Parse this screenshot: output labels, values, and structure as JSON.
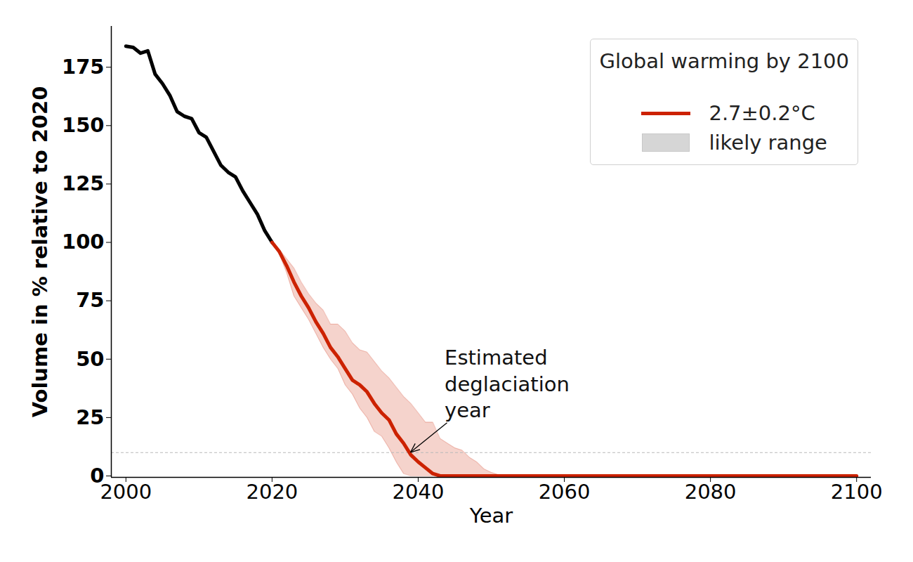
{
  "chart_data": {
    "type": "line",
    "xlabel": "Year",
    "ylabel": "Volume in % relative to 2020",
    "xlim": [
      1998,
      2102
    ],
    "ylim": [
      -0.6,
      192.5
    ],
    "xticks": [
      2000,
      2020,
      2040,
      2060,
      2080,
      2100
    ],
    "yticks": [
      0,
      25,
      50,
      75,
      100,
      125,
      150,
      175
    ],
    "legend": "upper right",
    "legend_title": "Global warming by 2100",
    "reference_line": 10,
    "annotation": {
      "text": "Estimated deglaciation year",
      "x": 2039,
      "y": 10
    },
    "series": [
      {
        "color": "#000000",
        "x": [
          2000,
          2001,
          2002,
          2003,
          2004,
          2005,
          2006,
          2007,
          2008,
          2009,
          2010,
          2011,
          2012,
          2013,
          2014,
          2015,
          2016,
          2017,
          2018,
          2019,
          2020
        ],
        "values": [
          184,
          183.5,
          181,
          182,
          172,
          168,
          163,
          156,
          154,
          153,
          147,
          145,
          139,
          133,
          130,
          128,
          122,
          117,
          112,
          105,
          100
        ]
      },
      {
        "name": "2.7±0.2°C",
        "color": "#cc2200",
        "x": [
          2020,
          2021,
          2022,
          2023,
          2024,
          2025,
          2026,
          2027,
          2028,
          2029,
          2030,
          2031,
          2032,
          2033,
          2034,
          2035,
          2036,
          2037,
          2038,
          2039,
          2040,
          2041,
          2042,
          2043,
          2044,
          2045,
          2046,
          2047,
          2048,
          2049,
          2050,
          2051,
          2052,
          2053,
          2054,
          2055,
          2056,
          2057,
          2058,
          2059,
          2060,
          2061,
          2062,
          2063,
          2064,
          2065,
          2066,
          2067,
          2068,
          2069,
          2070,
          2071,
          2072,
          2073,
          2074,
          2075,
          2076,
          2077,
          2078,
          2079,
          2080,
          2081,
          2082,
          2083,
          2084,
          2085,
          2086,
          2087,
          2088,
          2089,
          2090,
          2091,
          2092,
          2093,
          2094,
          2095,
          2096,
          2097,
          2098,
          2099,
          2100
        ],
        "values": [
          100,
          96,
          90,
          83,
          77,
          72,
          66,
          61,
          55,
          51,
          46,
          41,
          39,
          36,
          31,
          27,
          24,
          18,
          14,
          9,
          6,
          3.5,
          1,
          0,
          0,
          0,
          0,
          0,
          0,
          0,
          0,
          0,
          0,
          0,
          0,
          0,
          0,
          0,
          0,
          0,
          0,
          0,
          0,
          0,
          0,
          0,
          0,
          0,
          0,
          0,
          0,
          0,
          0,
          0,
          0,
          0,
          0,
          0,
          0,
          0,
          0,
          0,
          0,
          0,
          0,
          0,
          0,
          0,
          0,
          0,
          0,
          0,
          0,
          0,
          0,
          0,
          0,
          0,
          0,
          0,
          0
        ],
        "band": {
          "name": "likely range",
          "lower": [
            100,
            95,
            87,
            77,
            72,
            67,
            61,
            55,
            50,
            46,
            39,
            35,
            29,
            25,
            19,
            17,
            12,
            6,
            1,
            0,
            0,
            0,
            0,
            0,
            0,
            0,
            0,
            0,
            0,
            0,
            0,
            0,
            0,
            0,
            0,
            0,
            0,
            0,
            0,
            0,
            0,
            0,
            0,
            0,
            0,
            0,
            0,
            0,
            0,
            0,
            0,
            0,
            0,
            0,
            0,
            0,
            0,
            0,
            0,
            0,
            0,
            0,
            0,
            0,
            0,
            0,
            0,
            0,
            0,
            0,
            0,
            0,
            0,
            0,
            0,
            0,
            0,
            0,
            0,
            0,
            0
          ],
          "upper": [
            100,
            97,
            93,
            89,
            83,
            78,
            74,
            71,
            65,
            65,
            62,
            57,
            54,
            53,
            49,
            45,
            42,
            38,
            34,
            31,
            27,
            23,
            23,
            16,
            14,
            12,
            11,
            8,
            6,
            3,
            1.5,
            0.5,
            0,
            0,
            0,
            0,
            0,
            0,
            0,
            0,
            0,
            0,
            0,
            0,
            0,
            0,
            0,
            0,
            0,
            0,
            0,
            0,
            0,
            0,
            0,
            0,
            0,
            0,
            0,
            0,
            0,
            0,
            0,
            0,
            0,
            0,
            0,
            0,
            0,
            0,
            0,
            0,
            0,
            0,
            0,
            0,
            0,
            0,
            0,
            0,
            0
          ]
        }
      }
    ]
  }
}
